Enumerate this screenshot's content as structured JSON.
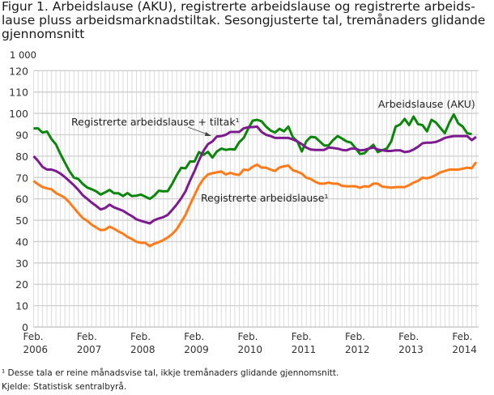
{
  "chart_data": {
    "type": "line",
    "title": "Figur 1. Arbeidslause (AKU), registrerte arbeidslause og registrerte arbeids-lause pluss arbeidsmarknadstiltak. Sesongjusterte tal, tremånaders glidande gjennomsnitt",
    "title_lines": [
      "Figur 1. Arbeidslause (AKU), registrerte arbeidslause og registrerte arbeids-",
      "lause pluss arbeidsmarknadstiltak. Sesongjusterte tal, tremånaders glidande",
      "gjennomsnitt"
    ],
    "yunit": "1 000",
    "ylim": [
      0,
      120
    ],
    "yticks": [
      0,
      10,
      20,
      30,
      40,
      50,
      60,
      70,
      80,
      90,
      100,
      110,
      120
    ],
    "grid": true,
    "xticks": [
      {
        "month": "2006-02",
        "label1": "Feb.",
        "label2": "2006"
      },
      {
        "month": "2007-02",
        "label1": "Feb.",
        "label2": "2007"
      },
      {
        "month": "2008-02",
        "label1": "Feb.",
        "label2": "2008"
      },
      {
        "month": "2009-02",
        "label1": "Feb.",
        "label2": "2009"
      },
      {
        "month": "2010-02",
        "label1": "Feb.",
        "label2": "2010"
      },
      {
        "month": "2011-02",
        "label1": "Feb.",
        "label2": "2011"
      },
      {
        "month": "2012-02",
        "label1": "Feb.",
        "label2": "2012"
      },
      {
        "month": "2013-02",
        "label1": "Feb.",
        "label2": "2013"
      },
      {
        "month": "2014-02",
        "label1": "Feb.",
        "label2": "2014"
      }
    ],
    "x_first_month": "2006-02",
    "x_last_month": "2014-05",
    "series": [
      {
        "name": "Arbeidslause (AKU)",
        "color": "#0a870a",
        "values": [
          93,
          93,
          91,
          91.5,
          88,
          85.5,
          81,
          77,
          73,
          70,
          69.3,
          67,
          65.3,
          64.5,
          63.5,
          62,
          63,
          64.2,
          62.6,
          62.6,
          61.3,
          62.7,
          61.3,
          61.5,
          62,
          61,
          60,
          61.5,
          63.8,
          63.5,
          63.6,
          67,
          71,
          74.5,
          74.3,
          77.5,
          77.5,
          81.9,
          80.6,
          82,
          79.3,
          82.2,
          83.5,
          82.9,
          83.3,
          83.1,
          86.5,
          88.5,
          92.8,
          96.6,
          97,
          96.3,
          93.8,
          92,
          91,
          92.8,
          91.6,
          93.8,
          88.8,
          86.9,
          82.2,
          86.9,
          89,
          88.8,
          86.9,
          85,
          85,
          87.5,
          89.4,
          88.2,
          86.9,
          86.3,
          83.8,
          81,
          81.3,
          83.5,
          85.3,
          81.9,
          82.8,
          83.5,
          86.9,
          93.8,
          94.8,
          97.4,
          94.5,
          98.5,
          95,
          94.5,
          91.6,
          97,
          95.7,
          93.2,
          90.7,
          95.7,
          99.5,
          95.3,
          93.8,
          90.7,
          90.3
        ]
      },
      {
        "name": "Registrerte arbeidslause + tiltak¹",
        "color": "#7d1a8f",
        "values": [
          80,
          77.7,
          75,
          73.7,
          73.7,
          73,
          71.8,
          70.2,
          68.3,
          66.4,
          64.2,
          61.7,
          60,
          58.2,
          56.7,
          55,
          55.7,
          57.3,
          56,
          55.2,
          54.4,
          53.1,
          51.9,
          50.4,
          49.7,
          49.1,
          48.5,
          50,
          50.8,
          51.4,
          52.5,
          54.8,
          57.3,
          60.2,
          63.6,
          68.6,
          73,
          78,
          82.5,
          85.6,
          86.9,
          89.2,
          89.4,
          90,
          91.3,
          91.3,
          91.3,
          93,
          93.5,
          93.6,
          93.8,
          91.3,
          90,
          89.4,
          88.5,
          88.5,
          88.5,
          88.5,
          87.8,
          86.9,
          85.6,
          84,
          83.1,
          82.9,
          82.9,
          82.9,
          84,
          83.8,
          83.5,
          82.9,
          82.7,
          83.5,
          83.5,
          82.7,
          82.9,
          83.5,
          84,
          83.1,
          82.7,
          82.4,
          82.4,
          82.7,
          82.7,
          81.9,
          82.2,
          83.1,
          84.4,
          86,
          86.3,
          86.3,
          86.6,
          87.5,
          88.5,
          89,
          89.4,
          89.4,
          89.4,
          89.4,
          87.5,
          89
        ]
      },
      {
        "name": "Registrerte arbeidslause¹",
        "color": "#ff7a18",
        "values": [
          68.4,
          66.8,
          65.5,
          64.9,
          64.5,
          62.7,
          61.7,
          60.5,
          58.3,
          55.8,
          53.3,
          51,
          49.7,
          47.9,
          46.6,
          45.3,
          45.6,
          47,
          46,
          44.7,
          43.7,
          42.2,
          41.2,
          39.9,
          39.4,
          39.4,
          37.8,
          39,
          39.7,
          40.7,
          41.9,
          43.5,
          45.7,
          49.1,
          52.5,
          57.3,
          61.7,
          66.1,
          69.3,
          71.4,
          72,
          72.4,
          72.8,
          71.4,
          72.2,
          71.5,
          71.2,
          73.7,
          73.4,
          75,
          76,
          74.6,
          74.6,
          73.7,
          73,
          74.7,
          75.2,
          75.6,
          73.4,
          72.7,
          71.8,
          69.9,
          69.3,
          68,
          67.1,
          67.1,
          67.6,
          67.1,
          67.1,
          66.1,
          65.9,
          65.9,
          65.9,
          65.2,
          65.9,
          65.7,
          67.1,
          67.1,
          65.7,
          65.5,
          65.2,
          65.5,
          65.5,
          65.5,
          66.4,
          67.6,
          68.4,
          69.9,
          69.6,
          70.2,
          71.2,
          72.4,
          73,
          73.7,
          73.7,
          73.7,
          74.1,
          74.6,
          74.3,
          77.2
        ]
      }
    ],
    "annotations": [
      "Registrerte arbeidslause + tiltak¹",
      "Arbeidslause (AKU)",
      "Registrerte arbeidslause¹"
    ]
  },
  "footnotes": {
    "note": "¹ Desse tala er reine månadsvise tal, ikkje tremånaders glidande gjennomsnitt.",
    "source": "Kjelde: Statistisk sentralbyrå."
  }
}
